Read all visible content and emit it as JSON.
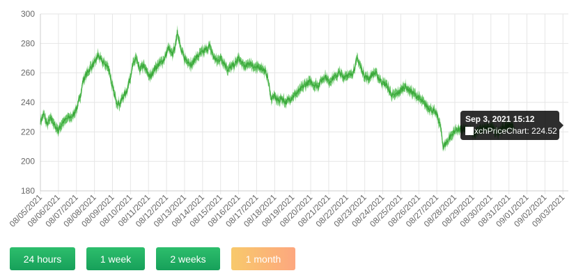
{
  "chart_data": {
    "type": "line",
    "series": [
      {
        "name": "xchPriceChart",
        "color": "#4cbb4c"
      }
    ],
    "x_ticks": [
      "08/05/2021",
      "08/06/2021",
      "08/07/2021",
      "08/08/2021",
      "08/09/2021",
      "08/10/2021",
      "08/11/2021",
      "08/12/2021",
      "08/13/2021",
      "08/14/2021",
      "08/15/2021",
      "08/16/2021",
      "08/17/2021",
      "08/18/2021",
      "08/19/2021",
      "08/20/2021",
      "08/21/2021",
      "08/22/2021",
      "08/23/2021",
      "08/24/2021",
      "08/25/2021",
      "08/26/2021",
      "08/27/2021",
      "08/28/2021",
      "08/29/2021",
      "08/30/2021",
      "08/31/2021",
      "09/01/2021",
      "09/02/2021",
      "09/03/2021"
    ],
    "y_ticks": [
      "180",
      "200",
      "220",
      "240",
      "260",
      "280",
      "300"
    ],
    "ylim": [
      180,
      300
    ],
    "xlim_days": [
      0,
      29.3
    ],
    "points": [
      [
        0,
        227
      ],
      [
        0.2,
        232
      ],
      [
        0.35,
        225
      ],
      [
        0.6,
        229
      ],
      [
        0.8,
        224
      ],
      [
        1.0,
        221
      ],
      [
        1.2,
        226
      ],
      [
        1.5,
        229
      ],
      [
        1.8,
        231
      ],
      [
        2.0,
        236
      ],
      [
        2.2,
        243
      ],
      [
        2.35,
        254
      ],
      [
        2.5,
        258
      ],
      [
        2.7,
        262
      ],
      [
        2.9,
        265
      ],
      [
        3.05,
        268
      ],
      [
        3.2,
        272
      ],
      [
        3.4,
        268
      ],
      [
        3.6,
        266
      ],
      [
        3.8,
        263
      ],
      [
        4.0,
        250
      ],
      [
        4.2,
        241
      ],
      [
        4.4,
        239
      ],
      [
        4.6,
        244
      ],
      [
        4.8,
        248
      ],
      [
        5.0,
        258
      ],
      [
        5.15,
        266
      ],
      [
        5.3,
        270
      ],
      [
        5.5,
        262
      ],
      [
        5.7,
        265
      ],
      [
        5.9,
        261
      ],
      [
        6.1,
        257
      ],
      [
        6.3,
        262
      ],
      [
        6.5,
        265
      ],
      [
        6.7,
        267
      ],
      [
        6.9,
        270
      ],
      [
        7.1,
        277
      ],
      [
        7.3,
        272
      ],
      [
        7.5,
        279
      ],
      [
        7.6,
        289
      ],
      [
        7.8,
        275
      ],
      [
        8.0,
        270
      ],
      [
        8.2,
        268
      ],
      [
        8.4,
        265
      ],
      [
        8.6,
        270
      ],
      [
        8.8,
        272
      ],
      [
        9.0,
        274
      ],
      [
        9.2,
        276
      ],
      [
        9.4,
        278
      ],
      [
        9.6,
        271
      ],
      [
        9.8,
        268
      ],
      [
        10.0,
        270
      ],
      [
        10.2,
        267
      ],
      [
        10.4,
        262
      ],
      [
        10.6,
        264
      ],
      [
        10.8,
        266
      ],
      [
        11.0,
        270
      ],
      [
        11.2,
        266
      ],
      [
        11.4,
        264
      ],
      [
        11.6,
        267
      ],
      [
        11.8,
        265
      ],
      [
        12.0,
        263
      ],
      [
        12.2,
        264
      ],
      [
        12.4,
        262
      ],
      [
        12.6,
        258
      ],
      [
        12.8,
        243
      ],
      [
        13.0,
        244
      ],
      [
        13.2,
        241
      ],
      [
        13.4,
        243
      ],
      [
        13.6,
        240
      ],
      [
        13.8,
        242
      ],
      [
        14.0,
        244
      ],
      [
        14.2,
        246
      ],
      [
        14.4,
        248
      ],
      [
        14.6,
        251
      ],
      [
        14.8,
        253
      ],
      [
        15.0,
        254
      ],
      [
        15.2,
        252
      ],
      [
        15.4,
        251
      ],
      [
        15.6,
        255
      ],
      [
        15.8,
        258
      ],
      [
        16.0,
        254
      ],
      [
        16.2,
        256
      ],
      [
        16.4,
        258
      ],
      [
        16.6,
        260
      ],
      [
        16.8,
        257
      ],
      [
        17.0,
        259
      ],
      [
        17.2,
        258
      ],
      [
        17.4,
        262
      ],
      [
        17.6,
        270
      ],
      [
        17.8,
        263
      ],
      [
        18.0,
        258
      ],
      [
        18.2,
        256
      ],
      [
        18.4,
        259
      ],
      [
        18.6,
        260
      ],
      [
        18.8,
        256
      ],
      [
        19.0,
        253
      ],
      [
        19.2,
        252
      ],
      [
        19.4,
        247
      ],
      [
        19.6,
        244
      ],
      [
        19.8,
        246
      ],
      [
        20.0,
        248
      ],
      [
        20.2,
        251
      ],
      [
        20.4,
        249
      ],
      [
        20.6,
        247
      ],
      [
        20.8,
        245
      ],
      [
        21.0,
        243
      ],
      [
        21.2,
        240
      ],
      [
        21.4,
        238
      ],
      [
        21.6,
        236
      ],
      [
        21.8,
        234
      ],
      [
        22.0,
        232
      ],
      [
        22.2,
        224
      ],
      [
        22.35,
        210
      ],
      [
        22.5,
        212
      ],
      [
        22.7,
        216
      ],
      [
        22.9,
        219
      ],
      [
        23.1,
        222
      ],
      [
        23.3,
        221
      ],
      [
        23.5,
        222
      ],
      [
        23.7,
        221
      ],
      [
        23.9,
        220
      ],
      [
        24.1,
        219
      ],
      [
        24.3,
        222
      ],
      [
        24.5,
        221
      ],
      [
        24.7,
        223
      ],
      [
        24.9,
        222
      ],
      [
        25.0,
        223
      ],
      [
        25.2,
        221
      ],
      [
        25.4,
        220
      ],
      [
        25.6,
        222
      ],
      [
        25.8,
        223
      ],
      [
        25.95,
        224.5
      ],
      [
        26.1,
        224
      ],
      [
        26.3,
        223
      ]
    ]
  },
  "tooltip": {
    "title": "Sep 3, 2021 15:12",
    "body": "xchPriceChart: 224.52"
  },
  "range_buttons": [
    {
      "label": "24 hours",
      "style": "green"
    },
    {
      "label": "1 week",
      "style": "green"
    },
    {
      "label": "2 weeks",
      "style": "green"
    },
    {
      "label": "1 month",
      "style": "orange"
    }
  ]
}
